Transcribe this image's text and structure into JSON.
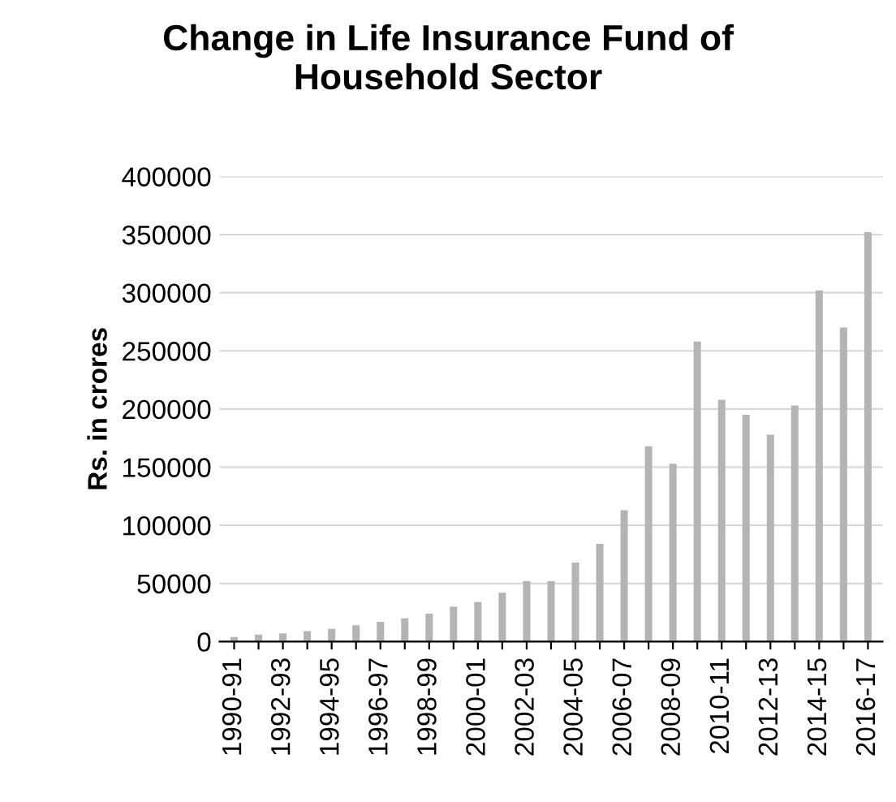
{
  "chart_data": {
    "type": "bar",
    "title": "Change in Life Insurance Fund of\nHousehold Sector",
    "ylabel": "Rs. in crores",
    "categories": [
      "1990-91",
      null,
      "1992-93",
      null,
      "1994-95",
      null,
      "1996-97",
      null,
      "1998-99",
      null,
      "2000-01",
      null,
      "2002-03",
      null,
      "2004-05",
      null,
      "2006-07",
      null,
      "2008-09",
      null,
      "2010-11",
      null,
      "2012-13",
      null,
      "2014-15",
      null,
      "2016-17"
    ],
    "values": [
      4000,
      6000,
      7000,
      9000,
      11000,
      14000,
      17000,
      20000,
      24000,
      30000,
      34000,
      42000,
      52000,
      52000,
      68000,
      84000,
      113000,
      168000,
      153000,
      258000,
      208000,
      195000,
      178000,
      203000,
      302000,
      270000,
      352000
    ],
    "color": "#b4b4b4",
    "ylim": [
      0,
      400000
    ],
    "yticks": [
      0,
      50000,
      100000,
      150000,
      200000,
      250000,
      300000,
      350000,
      400000
    ],
    "grid": "y",
    "legend": false
  }
}
